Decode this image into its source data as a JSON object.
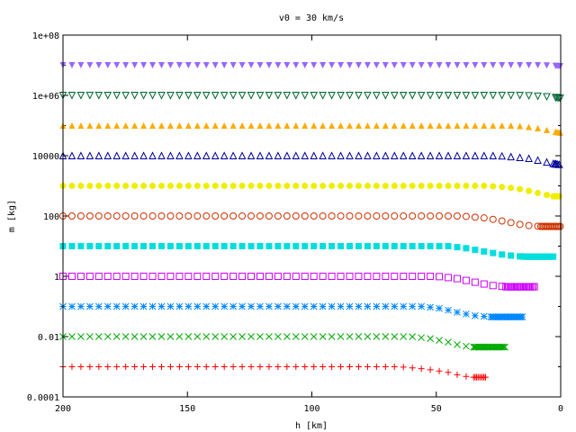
{
  "chart_data": {
    "type": "scatter",
    "title": "v0 = 30 km/s",
    "xlabel": "h [km]",
    "ylabel": "m [kg]",
    "xlim": [
      200,
      0
    ],
    "ylim": [
      0.0001,
      100000000
    ],
    "yscale": "log",
    "grid": false,
    "x_ticks": [
      200,
      150,
      100,
      50,
      0
    ],
    "x_tick_labels": [
      "200",
      "150",
      "100",
      "50",
      "0"
    ],
    "y_ticks": [
      0.0001,
      0.01,
      1,
      100,
      10000,
      1000000,
      100000000
    ],
    "y_tick_labels": [
      "0.0001",
      "0.01",
      "1",
      "100",
      "10000",
      "1e+06",
      "1e+08"
    ],
    "series": [
      {
        "color": "#ff0000",
        "marker": "plus",
        "initial_mass": 0.001,
        "points": [
          [
            200,
            0.001
          ],
          [
            150,
            0.001
          ],
          [
            100,
            0.001
          ],
          [
            65,
            0.001
          ],
          [
            55,
            0.00085
          ],
          [
            45,
            0.00065
          ],
          [
            40,
            0.0005
          ],
          [
            35,
            0.00045
          ],
          [
            30,
            0.00045
          ]
        ]
      },
      {
        "color": "#00aa00",
        "marker": "cross",
        "initial_mass": 0.01,
        "points": [
          [
            200,
            0.01
          ],
          [
            150,
            0.01
          ],
          [
            100,
            0.01
          ],
          [
            60,
            0.01
          ],
          [
            52,
            0.0085
          ],
          [
            45,
            0.0065
          ],
          [
            40,
            0.005
          ],
          [
            35,
            0.0045
          ],
          [
            22,
            0.0045
          ]
        ]
      },
      {
        "color": "#0088ff",
        "marker": "star",
        "initial_mass": 0.1,
        "points": [
          [
            200,
            0.1
          ],
          [
            150,
            0.1
          ],
          [
            100,
            0.1
          ],
          [
            55,
            0.1
          ],
          [
            48,
            0.085
          ],
          [
            42,
            0.065
          ],
          [
            35,
            0.05
          ],
          [
            28,
            0.045
          ],
          [
            15,
            0.045
          ]
        ]
      },
      {
        "color": "#cc00ff",
        "marker": "square",
        "initial_mass": 1,
        "points": [
          [
            200,
            1
          ],
          [
            150,
            1
          ],
          [
            100,
            1
          ],
          [
            50,
            1
          ],
          [
            42,
            0.85
          ],
          [
            35,
            0.65
          ],
          [
            28,
            0.5
          ],
          [
            22,
            0.45
          ],
          [
            10,
            0.45
          ]
        ]
      },
      {
        "color": "#00dddd",
        "marker": "square-filled",
        "initial_mass": 10,
        "points": [
          [
            200,
            10
          ],
          [
            150,
            10
          ],
          [
            100,
            10
          ],
          [
            45,
            10
          ],
          [
            38,
            8.5
          ],
          [
            30,
            6.5
          ],
          [
            22,
            5
          ],
          [
            15,
            4.5
          ],
          [
            3,
            4.5
          ]
        ]
      },
      {
        "color": "#cc3300",
        "marker": "circle",
        "initial_mass": 100,
        "points": [
          [
            200,
            100
          ],
          [
            150,
            100
          ],
          [
            100,
            100
          ],
          [
            40,
            100
          ],
          [
            30,
            85
          ],
          [
            22,
            65
          ],
          [
            15,
            50
          ],
          [
            8,
            45
          ],
          [
            0,
            45
          ]
        ]
      },
      {
        "color": "#eeee00",
        "marker": "circle-filled",
        "initial_mass": 1000,
        "points": [
          [
            200,
            1000
          ],
          [
            150,
            1000
          ],
          [
            100,
            1000
          ],
          [
            30,
            1000
          ],
          [
            22,
            900
          ],
          [
            15,
            750
          ],
          [
            8,
            550
          ],
          [
            3,
            450
          ],
          [
            0,
            450
          ]
        ]
      },
      {
        "color": "#000099",
        "marker": "triangle-up",
        "initial_mass": 10000,
        "points": [
          [
            200,
            10000
          ],
          [
            150,
            10000
          ],
          [
            100,
            10000
          ],
          [
            25,
            10000
          ],
          [
            18,
            9000
          ],
          [
            12,
            8000
          ],
          [
            7,
            6500
          ],
          [
            3,
            5500
          ],
          [
            0,
            5000
          ]
        ]
      },
      {
        "color": "#ffaa00",
        "marker": "triangle-up-filled",
        "initial_mass": 100000,
        "points": [
          [
            200,
            100000
          ],
          [
            150,
            100000
          ],
          [
            100,
            100000
          ],
          [
            20,
            100000
          ],
          [
            15,
            95000
          ],
          [
            10,
            85000
          ],
          [
            5,
            70000
          ],
          [
            2,
            62000
          ],
          [
            0,
            58000
          ]
        ]
      },
      {
        "color": "#006633",
        "marker": "triangle-down",
        "initial_mass": 1000000,
        "points": [
          [
            200,
            1000000
          ],
          [
            150,
            1000000
          ],
          [
            100,
            1000000
          ],
          [
            15,
            1000000
          ],
          [
            10,
            950000
          ],
          [
            5,
            900000
          ],
          [
            2,
            850000
          ],
          [
            0,
            800000
          ]
        ]
      },
      {
        "color": "#9966ff",
        "marker": "triangle-down-filled",
        "initial_mass": 10000000,
        "points": [
          [
            200,
            10000000
          ],
          [
            150,
            10000000
          ],
          [
            100,
            10000000
          ],
          [
            10,
            10000000
          ],
          [
            5,
            9800000
          ],
          [
            2,
            9500000
          ],
          [
            0,
            9200000
          ]
        ]
      }
    ]
  }
}
